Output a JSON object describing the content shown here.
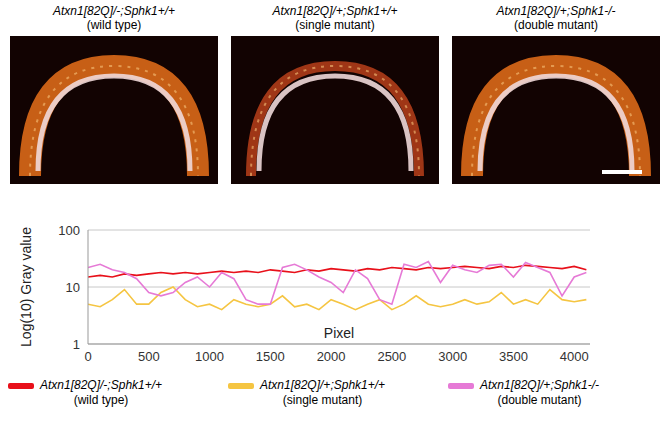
{
  "images": [
    {
      "title": "Atxn1[82Q]/-;Sphk1+/+ (wild type)"
    },
    {
      "title": "Atxn1[82Q]/+;Sphk1+/+ (single mutant)"
    },
    {
      "title": "Atxn1[82Q]/+;Sphk1-/- (double mutant)"
    }
  ],
  "chart_data": {
    "type": "line",
    "x_label": "Pixel",
    "y_label": "Log(10) Gray value",
    "x": [
      0,
      100,
      200,
      300,
      400,
      500,
      600,
      700,
      800,
      900,
      1000,
      1100,
      1200,
      1300,
      1400,
      1500,
      1600,
      1700,
      1800,
      1900,
      2000,
      2100,
      2200,
      2300,
      2400,
      2500,
      2600,
      2700,
      2800,
      2900,
      3000,
      3100,
      3200,
      3300,
      3400,
      3500,
      3600,
      3700,
      3800,
      3900,
      4000,
      4100
    ],
    "series": [
      {
        "name": "Atxn1[82Q]/-;Sphk1+/+ (wild type)",
        "color": "#e8101a",
        "values": [
          15,
          16,
          15,
          17,
          16,
          17,
          18,
          17,
          18,
          17,
          18,
          19,
          18,
          19,
          18,
          20,
          19,
          18,
          20,
          19,
          21,
          20,
          19,
          21,
          20,
          22,
          21,
          20,
          22,
          21,
          22,
          23,
          22,
          21,
          23,
          22,
          24,
          23,
          22,
          21,
          23,
          20
        ]
      },
      {
        "name": "Atxn1[82Q]/+;Sphk1+/+ (single mutant)",
        "color": "#f5c542",
        "values": [
          5,
          4.5,
          6,
          9,
          5,
          5,
          8,
          10,
          6,
          4.5,
          5,
          4,
          6,
          5,
          4.5,
          5,
          7,
          4.5,
          5,
          4,
          6,
          5,
          4,
          5,
          6,
          4,
          5,
          7,
          5,
          4.5,
          5,
          6,
          5,
          5.5,
          8,
          5,
          6,
          5,
          9,
          6,
          5.5,
          6
        ]
      },
      {
        "name": "Atxn1[82Q]/+;Sphk1-/- (double mutant)",
        "color": "#e67ad6",
        "values": [
          22,
          25,
          20,
          18,
          14,
          8,
          7,
          8,
          12,
          15,
          10,
          18,
          14,
          6,
          5,
          5,
          22,
          25,
          20,
          15,
          12,
          8,
          20,
          14,
          6,
          5,
          25,
          22,
          28,
          12,
          24,
          20,
          18,
          24,
          25,
          15,
          27,
          22,
          18,
          7,
          15,
          18
        ]
      }
    ],
    "xlim": [
      0,
      4130
    ],
    "xticks": [
      0,
      500,
      1000,
      1500,
      2000,
      2500,
      3000,
      3500,
      4000
    ],
    "ylim": [
      1,
      100
    ],
    "yticks": [
      1,
      10,
      100
    ],
    "log": "y",
    "grid": true,
    "legend": "bottom"
  }
}
